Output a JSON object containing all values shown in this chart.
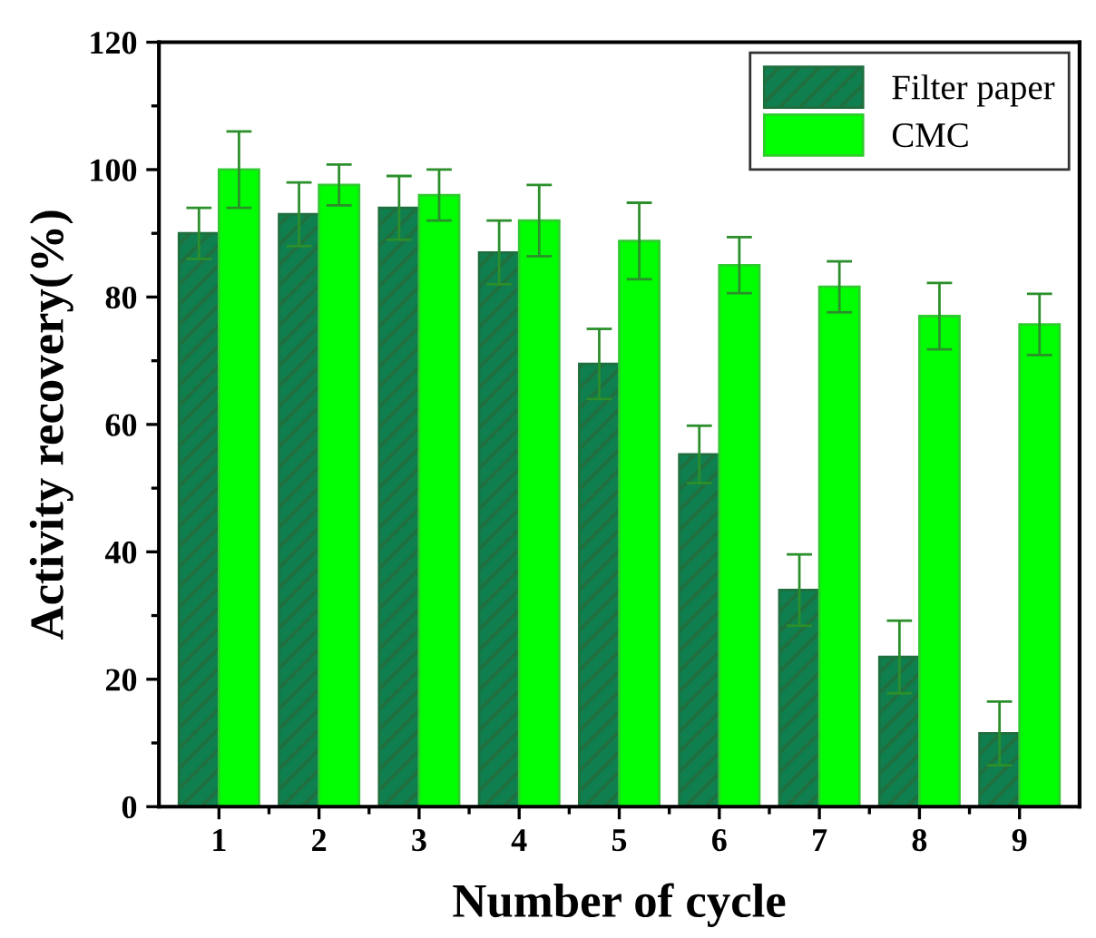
{
  "chart_data": {
    "type": "bar",
    "xlabel": "Number of cycle",
    "ylabel": "Activity recovery(%)",
    "categories": [
      "1",
      "2",
      "3",
      "4",
      "5",
      "6",
      "7",
      "8",
      "9"
    ],
    "series": [
      {
        "name": "Filter paper",
        "color": "#0f7f4f",
        "values": [
          90,
          93,
          94,
          87,
          69.5,
          55.3,
          34,
          23.5,
          11.5
        ],
        "errors": [
          4,
          5,
          5,
          5,
          5.5,
          4.5,
          5.6,
          5.7,
          5
        ]
      },
      {
        "name": "CMC",
        "color": "#00ff00",
        "values": [
          100,
          97.6,
          96,
          92,
          88.8,
          85,
          81.6,
          77,
          75.7
        ],
        "errors": [
          6,
          3.2,
          4,
          5.6,
          6,
          4.4,
          4,
          5.2,
          4.8
        ]
      }
    ],
    "ylim": [
      0,
      120
    ],
    "yticks": [
      0,
      20,
      40,
      60,
      80,
      100,
      120
    ],
    "legend": "top right",
    "grid": false
  }
}
